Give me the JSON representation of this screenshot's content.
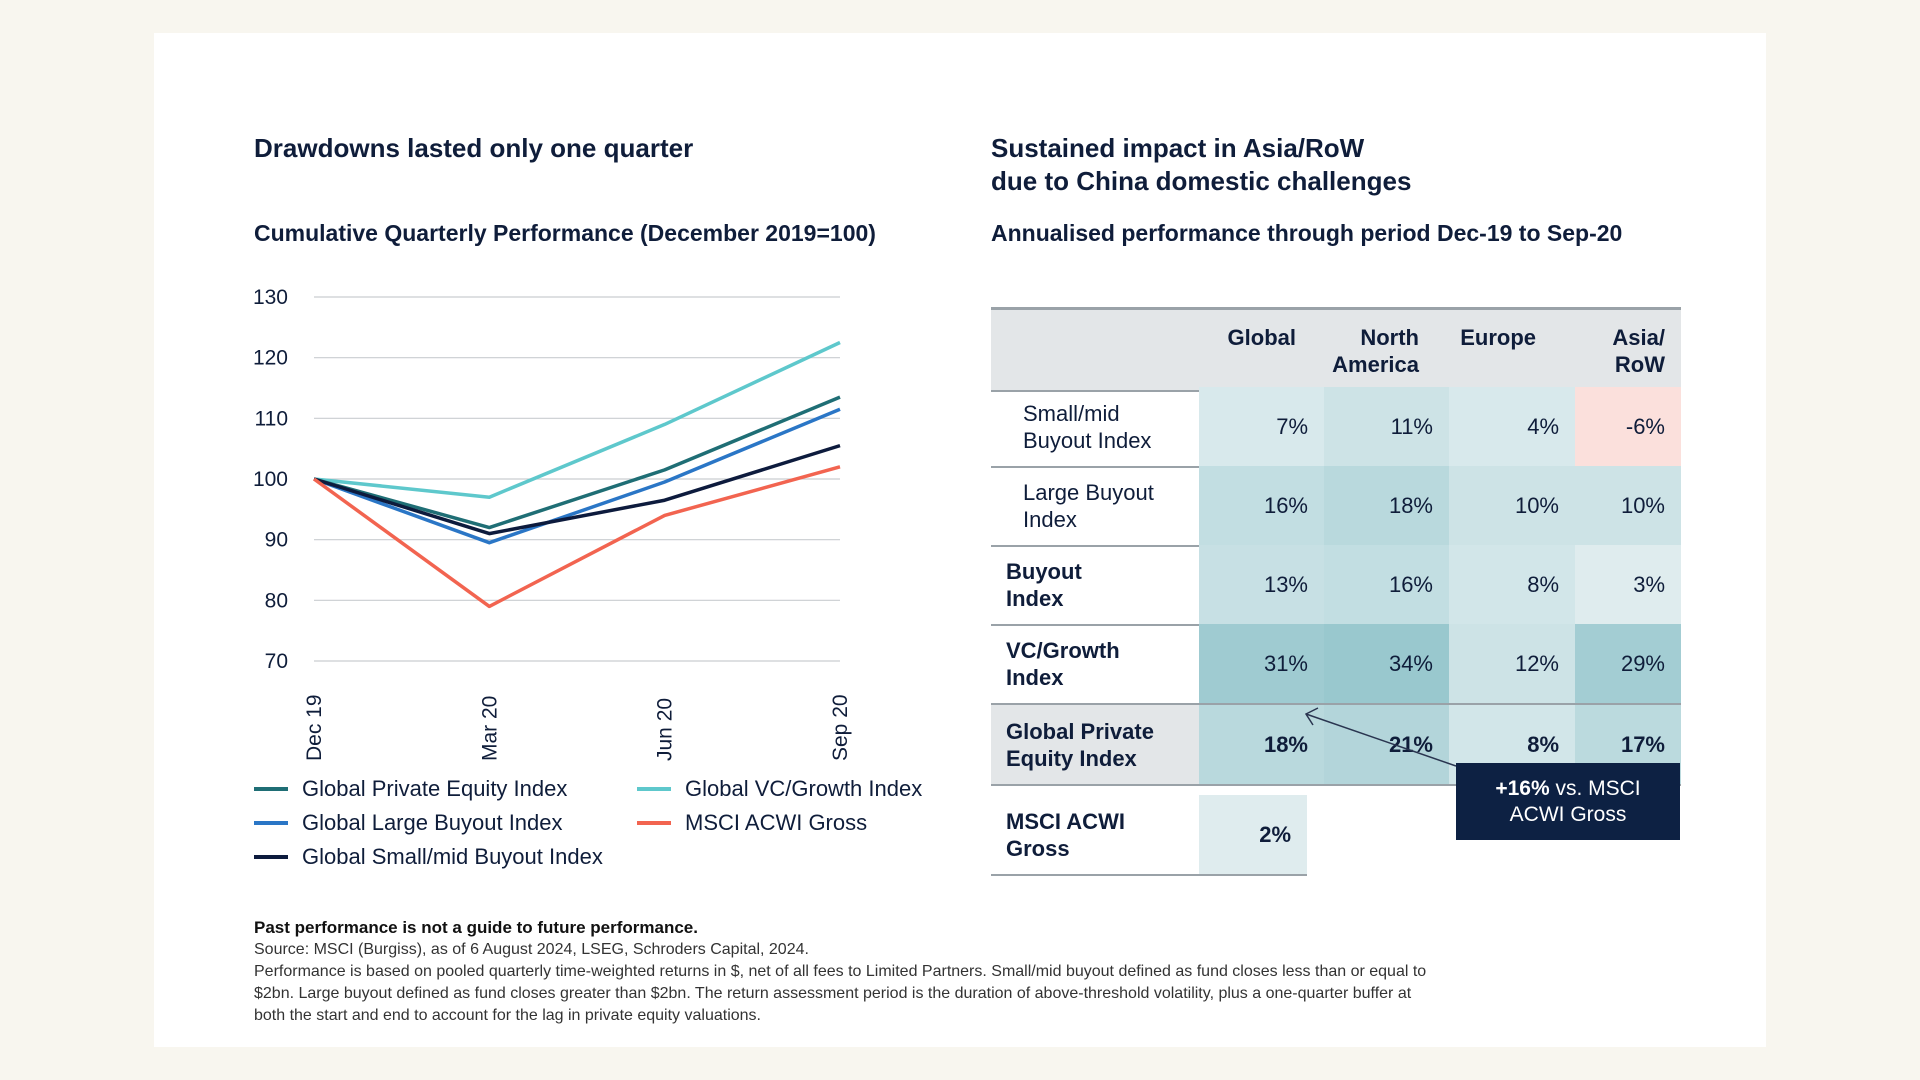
{
  "left_panel": {
    "title": "Drawdowns lasted only one quarter",
    "subtitle": "Cumulative Quarterly Performance (December 2019=100)"
  },
  "right_panel": {
    "title_line1": "Sustained impact in Asia/RoW",
    "title_line2": "due to China domestic challenges",
    "subtitle": "Annualised performance through period Dec-19 to Sep-20"
  },
  "chart_data": {
    "type": "line",
    "title": "Cumulative Quarterly Performance (December 2019=100)",
    "xlabel": "",
    "ylabel": "",
    "x": [
      "Dec 19",
      "Mar 20",
      "Jun 20",
      "Sep 20"
    ],
    "yticks": [
      "130",
      "120",
      "110",
      "100",
      "90",
      "80",
      "70"
    ],
    "ylim": [
      70,
      130
    ],
    "grid": true,
    "series": [
      {
        "name": "Global Private Equity Index",
        "color": "#1f6e75",
        "values": [
          100,
          92,
          101.5,
          113.5
        ]
      },
      {
        "name": "Global Large Buyout Index",
        "color": "#2a76c6",
        "values": [
          100,
          89.5,
          99.5,
          111.5
        ]
      },
      {
        "name": "Global Small/mid Buyout Index",
        "color": "#0d1b3d",
        "values": [
          100,
          91,
          96.5,
          105.5
        ]
      },
      {
        "name": "Global VC/Growth Index",
        "color": "#5ec8cc",
        "values": [
          100,
          97,
          109,
          122.5
        ]
      },
      {
        "name": "MSCI ACWI Gross",
        "color": "#f26450",
        "values": [
          100,
          79,
          94,
          102
        ]
      }
    ]
  },
  "table": {
    "columns": [
      "Global",
      "North America",
      "Europe",
      "Asia/ RoW"
    ],
    "col_line1": [
      "Global",
      "North",
      "Europe",
      "Asia/"
    ],
    "col_line2": [
      "",
      "America",
      "",
      "RoW"
    ],
    "rows": [
      {
        "label1": "Small/mid",
        "label2": "Buyout Index",
        "values": [
          "7%",
          "11%",
          "4%",
          "-6%"
        ],
        "colors": [
          "#d8e9ec",
          "#cde3e6",
          "#d8e9ec",
          "#fbe0dc"
        ]
      },
      {
        "label1": "Large Buyout",
        "label2": "Index",
        "values": [
          "16%",
          "18%",
          "10%",
          "10%"
        ],
        "colors": [
          "#c2dee2",
          "#b9d9dd",
          "#cde3e6",
          "#cde3e6"
        ]
      },
      {
        "label1": "Buyout",
        "label2": "Index",
        "values": [
          "13%",
          "16%",
          "8%",
          "3%"
        ],
        "colors": [
          "#c7e0e4",
          "#c2dee2",
          "#d2e6e9",
          "#dfecee"
        ]
      },
      {
        "label1": "VC/Growth",
        "label2": "Index",
        "values": [
          "31%",
          "34%",
          "12%",
          "29%"
        ],
        "colors": [
          "#9fcbd1",
          "#99c8ce",
          "#cde3e6",
          "#a3cdd3"
        ]
      },
      {
        "label1": "Global Private",
        "label2": "Equity Index",
        "values": [
          "18%",
          "21%",
          "8%",
          "17%"
        ],
        "colors": [
          "#b9d9dd",
          "#b3d5da",
          "#d2e6e9",
          "#bbdade"
        ]
      }
    ],
    "msci_label1": "MSCI ACWI",
    "msci_label2": "Gross",
    "msci_value": "2%",
    "msci_color": "#dfecee"
  },
  "callout": {
    "bold": "+16%",
    "rest_line1": " vs. MSCI",
    "line2": "ACWI Gross"
  },
  "footnote": {
    "disclaimer": "Past performance is not a guide to future performance.",
    "source": "Source: MSCI (Burgiss), as of 6 August 2024, LSEG, Schroders Capital, 2024.",
    "line1": "Performance is based on pooled quarterly time-weighted returns in $, net of all fees to Limited Partners. Small/mid buyout defined as fund closes less than or equal to",
    "line2": "$2bn. Large buyout defined as fund closes greater than $2bn. The return assessment period is the duration of above-threshold volatility, plus a one-quarter buffer at",
    "line3": "both the start and end to account for the lag in private equity valuations."
  }
}
